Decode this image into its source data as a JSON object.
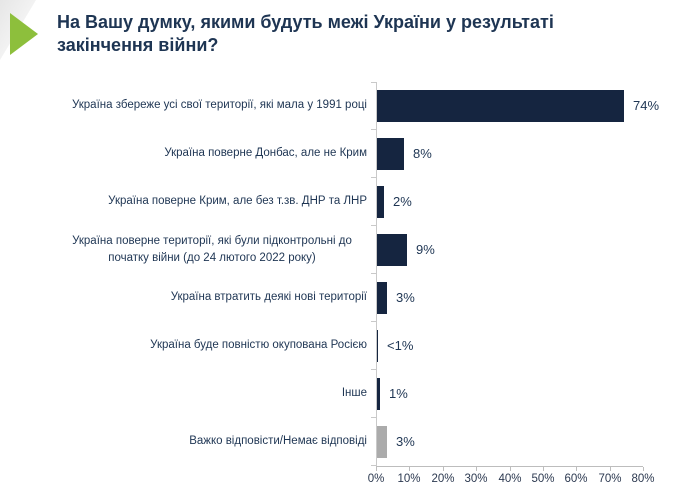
{
  "header": {
    "title": "На Вашу думку, якими будуть межі України у результаті закінчення війни?"
  },
  "icons": {
    "bullet": "green-right-arrow"
  },
  "colors": {
    "accent_green": "#8dbf3c",
    "bar_navy": "#152540",
    "bar_gray": "#ababab",
    "text_navy": "#1e3553",
    "axis_gray": "#bdbdbd"
  },
  "chart_data": {
    "type": "bar",
    "orientation": "horizontal",
    "title": "На Вашу думку, якими будуть межі України у результаті закінчення війни?",
    "categories": [
      "Україна збереже усі свої території, які мала у 1991 році",
      "Україна поверне Донбас, але не Крим",
      "Україна поверне Крим, але без т.зв. ДНР та ЛНР",
      "Україна поверне території, які були підконтрольні до початку війни (до 24 лютого 2022 року)",
      "Україна втратить деякі нові території",
      "Україна буде повністю окупована Росією",
      "Інше",
      "Важко відповісти/Немає відповіді"
    ],
    "values": [
      74,
      8,
      2,
      9,
      3,
      0.4,
      1,
      3
    ],
    "value_labels": [
      "74%",
      "8%",
      "2%",
      "9%",
      "3%",
      "<1%",
      "1%",
      "3%"
    ],
    "bar_colors": [
      "#152540",
      "#152540",
      "#152540",
      "#152540",
      "#152540",
      "#152540",
      "#152540",
      "#ababab"
    ],
    "xlim": [
      0,
      80
    ],
    "x_ticks": [
      "0%",
      "10%",
      "20%",
      "30%",
      "40%",
      "50%",
      "60%",
      "70%",
      "80%"
    ],
    "grid": false,
    "legend": false
  }
}
